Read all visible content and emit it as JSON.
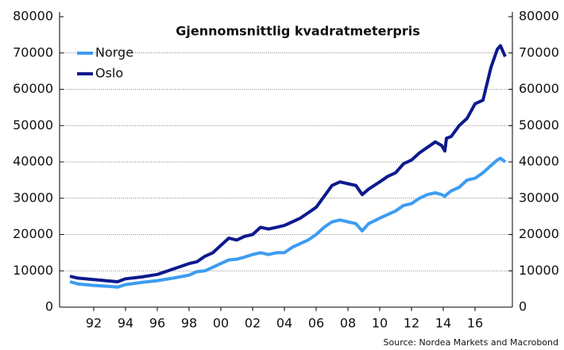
{
  "chart_data": {
    "type": "line",
    "title": "Gjennomsnittlig kvadratmeterpris",
    "source": "Source: Nordea Markets and Macrobond",
    "x": [
      1990.5,
      1991,
      1992,
      1993,
      1993.5,
      1994,
      1995,
      1996,
      1997,
      1998,
      1998.5,
      1999,
      1999.5,
      2000,
      2000.5,
      2001,
      2001.5,
      2002,
      2002.5,
      2003,
      2003.5,
      2004,
      2004.5,
      2005,
      2005.5,
      2006,
      2006.5,
      2007,
      2007.5,
      2008,
      2008.5,
      2008.9,
      2009.3,
      2010,
      2010.5,
      2011,
      2011.5,
      2012,
      2012.5,
      2013,
      2013.5,
      2013.9,
      2014.1,
      2014.2,
      2014.5,
      2015,
      2015.5,
      2016,
      2016.5,
      2017,
      2017.4,
      2017.6,
      2017.9
    ],
    "series": [
      {
        "name": "Norge",
        "color": "#3d9cf0",
        "values": [
          7000,
          6400,
          6000,
          5700,
          5500,
          6200,
          6800,
          7300,
          8000,
          8800,
          9800,
          10000,
          11000,
          12000,
          13000,
          13200,
          13800,
          14500,
          15000,
          14500,
          15000,
          15000,
          16500,
          17500,
          18500,
          20000,
          22000,
          23500,
          24000,
          23500,
          23000,
          21000,
          23000,
          24500,
          25500,
          26500,
          28000,
          28500,
          30000,
          31000,
          31500,
          31000,
          30500,
          31000,
          32000,
          33000,
          35000,
          35500,
          37000,
          39000,
          40500,
          41000,
          40000
        ]
      },
      {
        "name": "Oslo",
        "color": "#0d1a8c",
        "values": [
          8500,
          8000,
          7600,
          7200,
          7000,
          7800,
          8300,
          9000,
          10500,
          12000,
          12500,
          14000,
          15000,
          17000,
          19000,
          18500,
          19500,
          20000,
          22000,
          21500,
          22000,
          22500,
          23500,
          24500,
          26000,
          27500,
          30500,
          33500,
          34500,
          34000,
          33500,
          31000,
          32500,
          34500,
          36000,
          37000,
          39500,
          40500,
          42500,
          44000,
          45500,
          44500,
          43000,
          46500,
          47000,
          50000,
          52000,
          56000,
          57000,
          66000,
          71000,
          72000,
          69000
        ]
      }
    ],
    "xlim": [
      1989.85,
      2018.35
    ],
    "xticks": [
      {
        "value": 1992,
        "label": "92"
      },
      {
        "value": 1994,
        "label": "94"
      },
      {
        "value": 1996,
        "label": "96"
      },
      {
        "value": 1998,
        "label": "98"
      },
      {
        "value": 2000,
        "label": "00"
      },
      {
        "value": 2002,
        "label": "02"
      },
      {
        "value": 2004,
        "label": "04"
      },
      {
        "value": 2006,
        "label": "06"
      },
      {
        "value": 2008,
        "label": "08"
      },
      {
        "value": 2010,
        "label": "10"
      },
      {
        "value": 2012,
        "label": "12"
      },
      {
        "value": 2014,
        "label": "14"
      },
      {
        "value": 2016,
        "label": "16"
      }
    ],
    "ylim": [
      0,
      80000
    ],
    "yticks": [
      0,
      10000,
      20000,
      30000,
      40000,
      50000,
      60000,
      70000,
      80000
    ],
    "y2lim": [
      0,
      80000
    ],
    "y2ticks": [
      0,
      10000,
      20000,
      30000,
      40000,
      50000,
      60000,
      70000,
      80000
    ],
    "grid": true,
    "legend": "upper left"
  }
}
